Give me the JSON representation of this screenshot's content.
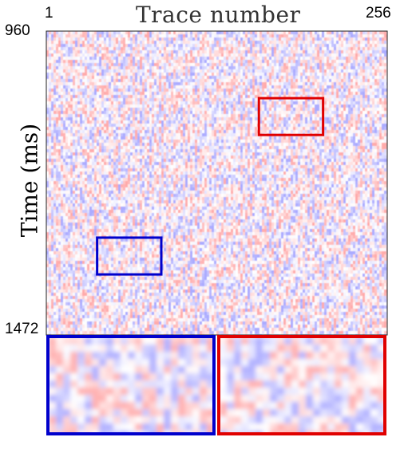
{
  "chart_data": {
    "type": "heatmap",
    "title": "Trace number",
    "ylabel": "Time (ms)",
    "x_ticks": [
      "1",
      "256"
    ],
    "y_ticks": [
      "960",
      "1472"
    ],
    "x_range": [
      1,
      256
    ],
    "y_range_ms": [
      960,
      1472
    ],
    "colormap": "seismic (blue-white-red)",
    "zoom_boxes": [
      {
        "color": "#e00000",
        "trace_range": [
          160,
          208
        ],
        "time_range_ms": [
          1073,
          1135
        ]
      },
      {
        "color": "#0000cc",
        "trace_range": [
          39,
          87
        ],
        "time_range_ms": [
          1308,
          1370
        ]
      }
    ]
  },
  "colors": {
    "positive": "#e00000",
    "negative": "#0000cc"
  }
}
